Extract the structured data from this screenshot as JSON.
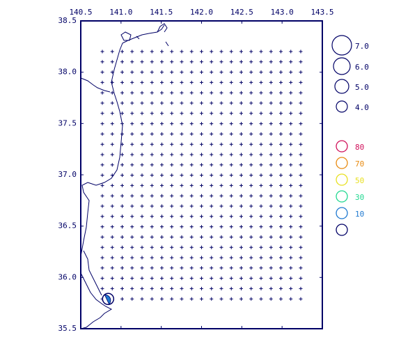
{
  "map": {
    "xlim": [
      140.5,
      143.5
    ],
    "ylim": [
      35.5,
      38.5
    ],
    "xticks": [
      140.5,
      {
        "value": 141.0,
        "label": "141.0"
      },
      141.5,
      {
        "value": 142.0,
        "label": "142.0"
      },
      142.5,
      {
        "value": 143.0,
        "label": "143.0"
      },
      143.5
    ],
    "yticks": [
      35.5,
      {
        "value": 36.0,
        "label": "36.0"
      },
      36.5,
      {
        "value": 37.0,
        "label": "37.0"
      },
      37.5,
      {
        "value": 38.0,
        "label": "38.0"
      },
      38.5
    ],
    "event": {
      "lon": 140.84,
      "lat": 35.79,
      "color": "#1e78d0"
    },
    "magnitude_legend": [
      {
        "value": 7.0,
        "label": "7.0"
      },
      {
        "value": 6.0,
        "label": "6.0"
      },
      {
        "value": 5.0,
        "label": "5.0"
      },
      {
        "value": 4.0,
        "label": "4.0"
      }
    ],
    "depth_legend": [
      {
        "label": 80,
        "color": "#d0105a"
      },
      {
        "label": 70,
        "color": "#e88a10"
      },
      {
        "label": 50,
        "color": "#e8e020"
      },
      {
        "label": 30,
        "color": "#20d890"
      },
      {
        "label": 10,
        "color": "#1e78d0"
      },
      {
        "color": "#000066"
      }
    ]
  }
}
